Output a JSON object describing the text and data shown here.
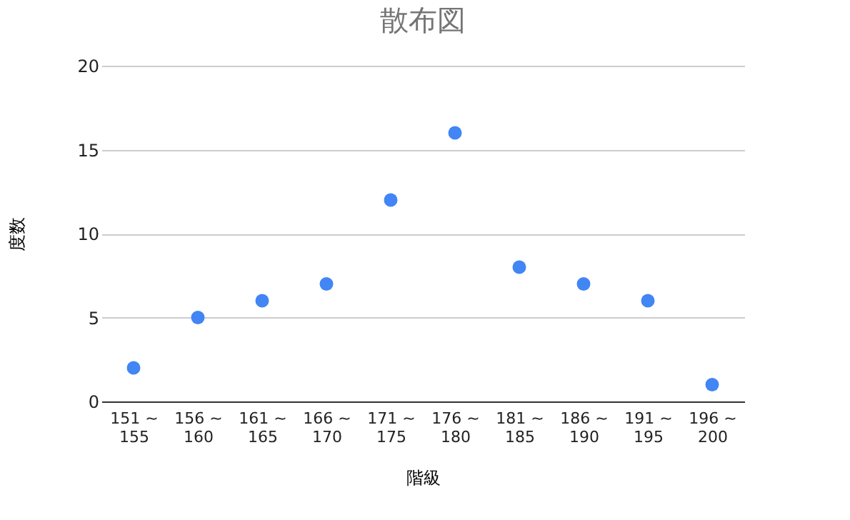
{
  "chart_data": {
    "type": "scatter",
    "title": "散布図",
    "xlabel": "階級",
    "ylabel": "度数",
    "categories": [
      "151 ~ 155",
      "156 ~ 160",
      "161 ~ 165",
      "166 ~ 170",
      "171 ~ 175",
      "176 ~ 180",
      "181 ~ 185",
      "186 ~ 190",
      "191 ~ 195",
      "196 ~ 200"
    ],
    "series": [
      {
        "color": "#4285f4",
        "values": [
          2,
          5,
          6,
          7,
          12,
          16,
          8,
          7,
          6,
          1
        ]
      }
    ],
    "ylim": [
      0,
      20
    ],
    "yticks": [
      0,
      5,
      10,
      15,
      20
    ],
    "grid": "y",
    "marker": "circle",
    "legend": false
  }
}
